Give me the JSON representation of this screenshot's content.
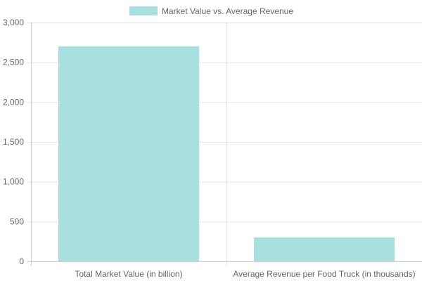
{
  "chart_data": {
    "type": "bar",
    "categories": [
      "Total Market Value (in billion)",
      "Average Revenue per Food Truck (in thousands)"
    ],
    "series": [
      {
        "name": "Market Value vs. Average Revenue",
        "values": [
          2700,
          300
        ],
        "color": "#a8e0e0"
      }
    ],
    "ylim": [
      0,
      3000
    ],
    "yticks": [
      "0",
      "500",
      "1,000",
      "1,500",
      "2,000",
      "2,500",
      "3,000"
    ],
    "ytick_values": [
      0,
      500,
      1000,
      1500,
      2000,
      2500,
      3000
    ],
    "grid": true,
    "legend_position": "top"
  },
  "colors": {
    "bar": "#a8e0e0",
    "grid": "#e5e5e5",
    "axis": "#cccccc",
    "text": "#666666"
  }
}
